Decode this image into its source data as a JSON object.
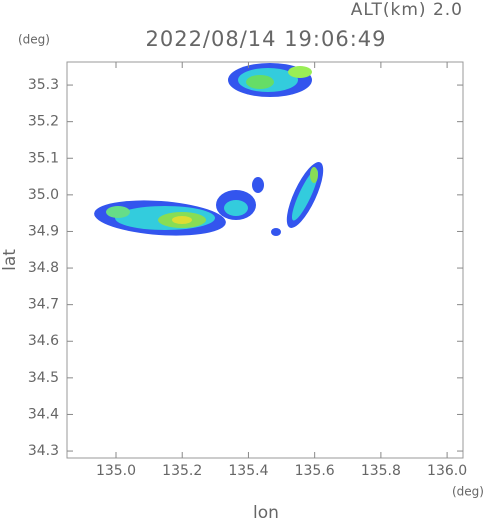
{
  "chart_data": {
    "type": "map",
    "title": "2022/08/14 19:06:49",
    "altitude_label": "ALT(km) 2.0",
    "y_unit": "(deg)",
    "x_unit": "(deg)",
    "xlabel": "lon",
    "ylabel": "lat",
    "xlim": [
      134.852,
      136.048
    ],
    "ylim": [
      34.281,
      35.363
    ],
    "xticks": [
      {
        "value": 135,
        "label": "135.0"
      },
      135.2,
      135.4,
      135.6,
      135.8,
      {
        "value": 136,
        "label": "136.0"
      }
    ],
    "yticks": [
      34.3,
      34.4,
      34.5,
      34.6,
      34.7,
      34.8,
      34.9,
      {
        "value": 35,
        "label": "35.0"
      },
      35.1,
      35.2,
      35.3
    ]
  }
}
